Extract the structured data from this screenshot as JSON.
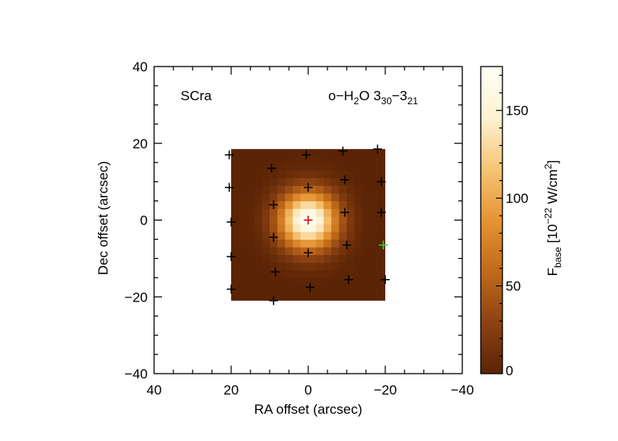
{
  "chart_data": {
    "type": "heatmap",
    "source_label": "SCra",
    "line_label": {
      "prefix": "o−H",
      "sub1": "2",
      "mid": "O 3",
      "sub2": "30",
      "dash": "−3",
      "sub3": "21"
    },
    "xlabel": "RA offset (arcsec)",
    "ylabel": "Dec offset (arcsec)",
    "xlim": [
      40,
      -40
    ],
    "ylim": [
      -40,
      40
    ],
    "xticks": [
      40,
      20,
      0,
      -20,
      -40
    ],
    "xtick_labels": [
      "40",
      "20",
      "0",
      "−20",
      "−40"
    ],
    "yticks": [
      40,
      20,
      0,
      -20,
      -40
    ],
    "ytick_labels": [
      "40",
      "20",
      "0",
      "−20",
      "−40"
    ],
    "map_extent": {
      "x": [
        20,
        -20
      ],
      "y": [
        -21,
        18.5
      ]
    },
    "gaussian": {
      "peak": 175,
      "center": [
        0,
        0
      ],
      "sigma_arcsec": 5.3,
      "pixel_arcsec": 2.0
    },
    "colorbar": {
      "range": [
        0,
        175
      ],
      "ticks": [
        0,
        50,
        100,
        150
      ],
      "tick_labels": [
        "0",
        "50",
        "100",
        "150"
      ],
      "label": {
        "prefix": "F",
        "sub": "base",
        "unit_a": " [10",
        "exp": "−22",
        "unit_b": " W/cm",
        "exp2": "2",
        "unit_c": "]"
      },
      "colors": [
        "#5a2405",
        "#8d4213",
        "#c06a1a",
        "#e59433",
        "#f6c574",
        "#fdf2d2",
        "#fffff5"
      ]
    },
    "spaxels": [
      {
        "x": 20.5,
        "y": 17,
        "color": "#000000"
      },
      {
        "x": 9.5,
        "y": 13.5,
        "color": "#000000"
      },
      {
        "x": 0.5,
        "y": 17,
        "color": "#000000"
      },
      {
        "x": -9,
        "y": 18,
        "color": "#000000"
      },
      {
        "x": -18,
        "y": 18.5,
        "color": "#000000"
      },
      {
        "x": 20.5,
        "y": 8.5,
        "color": "#000000"
      },
      {
        "x": 0,
        "y": 8.5,
        "color": "#000000"
      },
      {
        "x": -9.5,
        "y": 10.5,
        "color": "#000000"
      },
      {
        "x": -19,
        "y": 10,
        "color": "#000000"
      },
      {
        "x": 9,
        "y": 4,
        "color": "#000000"
      },
      {
        "x": 20,
        "y": -0.5,
        "color": "#000000"
      },
      {
        "x": -9.5,
        "y": 2,
        "color": "#000000"
      },
      {
        "x": -19,
        "y": 2,
        "color": "#000000"
      },
      {
        "x": 9,
        "y": -4.5,
        "color": "#000000"
      },
      {
        "x": -10,
        "y": -6.5,
        "color": "#000000"
      },
      {
        "x": 20,
        "y": -9.5,
        "color": "#000000"
      },
      {
        "x": 0,
        "y": -8.5,
        "color": "#000000"
      },
      {
        "x": 8.5,
        "y": -13.5,
        "color": "#000000"
      },
      {
        "x": 20,
        "y": -18,
        "color": "#000000"
      },
      {
        "x": 9,
        "y": -21,
        "color": "#000000"
      },
      {
        "x": -0.5,
        "y": -17.5,
        "color": "#000000"
      },
      {
        "x": -10.5,
        "y": -15.5,
        "color": "#000000"
      },
      {
        "x": -20,
        "y": -15.5,
        "color": "#000000"
      },
      {
        "x": 0,
        "y": 0,
        "color": "#dd0000"
      },
      {
        "x": -19.5,
        "y": -6.5,
        "color": "#22dd22"
      }
    ]
  }
}
